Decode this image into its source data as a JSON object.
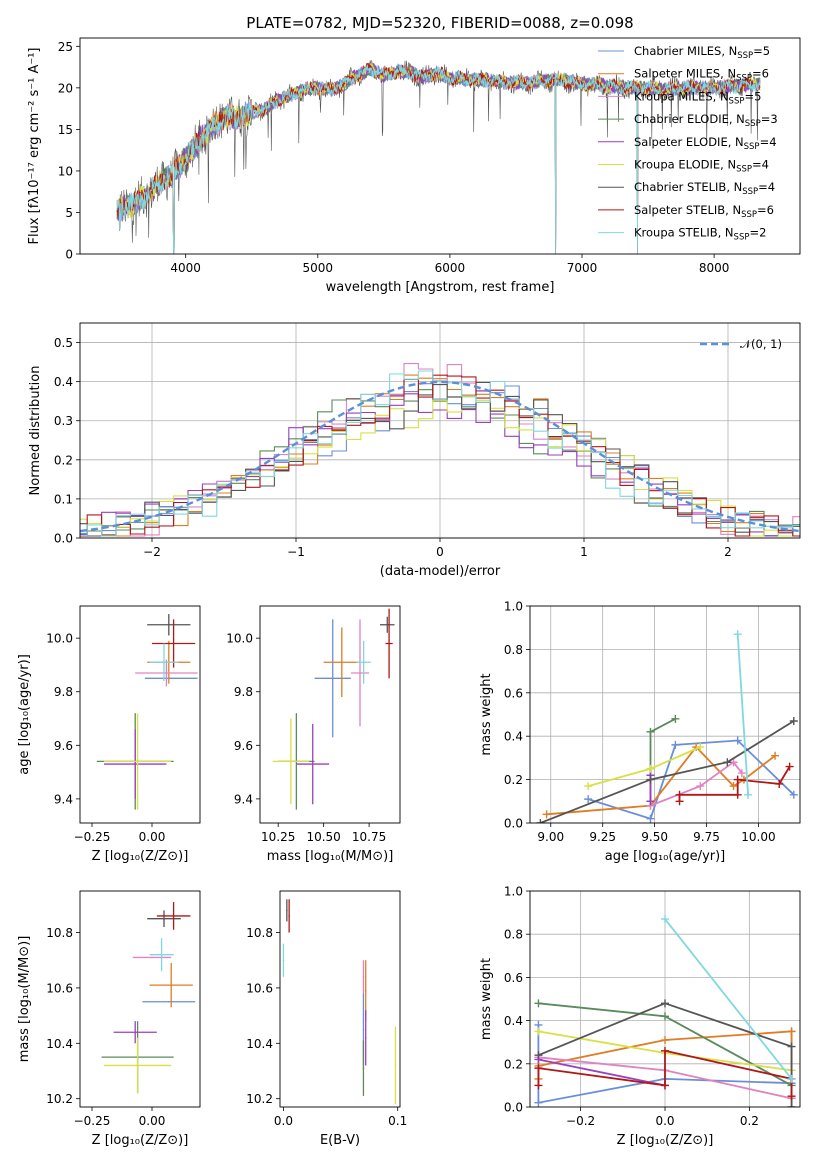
{
  "figure": {
    "title": "PLATE=0782, MJD=52320, FIBERID=0088, z=0.098"
  },
  "colors": {
    "Chabrier MILES": "#6a8fd8",
    "Salpeter MILES": "#e07c22",
    "Kroupa MILES": "#e083c0",
    "Chabrier ELODIE": "#5b8a5b",
    "Salpeter ELODIE": "#9b3fc0",
    "Kroupa ELODIE": "#d8e043",
    "Chabrier STELIB": "#555555",
    "Salpeter STELIB": "#b01818",
    "Kroupa STELIB": "#7fd8e0",
    "normal": "#5b8fd8"
  },
  "legend_spectrum": [
    {
      "label": "Chabrier MILES, N",
      "sub": "SSP",
      "suffix": "=5",
      "key": "Chabrier MILES"
    },
    {
      "label": "Salpeter MILES, N",
      "sub": "SSP",
      "suffix": "=6",
      "key": "Salpeter MILES"
    },
    {
      "label": "Kroupa MILES, N",
      "sub": "SSP",
      "suffix": "=5",
      "key": "Kroupa MILES"
    },
    {
      "label": "Chabrier ELODIE, N",
      "sub": "SSP",
      "suffix": "=3",
      "key": "Chabrier ELODIE"
    },
    {
      "label": "Salpeter ELODIE, N",
      "sub": "SSP",
      "suffix": "=4",
      "key": "Salpeter ELODIE"
    },
    {
      "label": "Kroupa ELODIE, N",
      "sub": "SSP",
      "suffix": "=4",
      "key": "Kroupa ELODIE"
    },
    {
      "label": "Chabrier STELIB, N",
      "sub": "SSP",
      "suffix": "=4",
      "key": "Chabrier STELIB"
    },
    {
      "label": "Salpeter STELIB, N",
      "sub": "SSP",
      "suffix": "=6",
      "key": "Salpeter STELIB"
    },
    {
      "label": "Kroupa STELIB, N",
      "sub": "SSP",
      "suffix": "=2",
      "key": "Kroupa STELIB"
    }
  ],
  "chart_data": [
    {
      "id": "spectrum",
      "type": "line",
      "xlabel": "wavelength [Angstrom, rest frame]",
      "ylabel": "Flux [fλ10⁻¹⁷ erg cm⁻² s⁻¹ A⁻¹]",
      "xlim": [
        3200,
        8650
      ],
      "ylim": [
        0,
        26
      ],
      "xticks": [
        4000,
        5000,
        6000,
        7000,
        8000
      ],
      "yticks": [
        0,
        5,
        10,
        15,
        20,
        25
      ],
      "grid": false,
      "legend": "right",
      "profile_x": [
        3480,
        3600,
        3700,
        3800,
        3900,
        4000,
        4100,
        4200,
        4300,
        4400,
        4500,
        4600,
        4700,
        4800,
        4900,
        5000,
        5100,
        5200,
        5300,
        5400,
        5500,
        5600,
        5700,
        5800,
        5900,
        6000,
        6200,
        6400,
        6600,
        6800,
        7000,
        7200,
        7400,
        7600,
        7800,
        8000,
        8200,
        8350
      ],
      "profile_y": [
        5.2,
        6.0,
        7.0,
        8.5,
        9.5,
        11.5,
        13.5,
        15.5,
        16.5,
        16.5,
        17.0,
        17.5,
        18.5,
        19.2,
        19.8,
        20.0,
        19.8,
        20.5,
        21.5,
        22.3,
        21.5,
        22.0,
        21.8,
        21.3,
        21.8,
        21.2,
        21.0,
        20.7,
        20.6,
        21.0,
        20.5,
        20.2,
        20.0,
        19.8,
        20.0,
        20.0,
        20.3,
        20.5
      ],
      "dips": [
        [
          6800,
          0
        ],
        [
          7420,
          0
        ],
        [
          3910,
          0
        ],
        [
          3500,
          2.8
        ]
      ]
    },
    {
      "id": "residuals",
      "type": "step-histogram",
      "xlabel": "(data-model)/error",
      "ylabel": "Normed distribution",
      "xlim": [
        -2.5,
        2.5
      ],
      "ylim": [
        0,
        0.55
      ],
      "xticks": [
        -2,
        -1,
        0,
        1,
        2
      ],
      "yticks": [
        0.0,
        0.1,
        0.2,
        0.3,
        0.4,
        0.5
      ],
      "grid": true,
      "legend": "top-right",
      "legend_label": "𝒩(0, 1)",
      "bin_width": 0.1
    },
    {
      "id": "age-vs-Z",
      "type": "errorbar",
      "xlabel": "Z [log₁₀(Z/Z⊙)]",
      "ylabel": "age  [log₁₀(age/yr)]",
      "xlim": [
        -0.3,
        0.2
      ],
      "ylim": [
        9.31,
        10.12
      ],
      "xticks": [
        -0.25,
        0.0
      ],
      "yticks": [
        9.4,
        9.6,
        9.8,
        10.0
      ],
      "points": [
        {
          "key": "Chabrier MILES",
          "x": 0.08,
          "y": 9.85,
          "xerr": 0.11,
          "yerr": 0.0
        },
        {
          "key": "Salpeter MILES",
          "x": 0.07,
          "y": 9.91,
          "xerr": 0.09,
          "yerr": 0.08
        },
        {
          "key": "Kroupa MILES",
          "x": 0.06,
          "y": 9.87,
          "xerr": 0.13,
          "yerr": 0.05
        },
        {
          "key": "Chabrier ELODIE",
          "x": -0.07,
          "y": 9.54,
          "xerr": 0.16,
          "yerr": 0.18
        },
        {
          "key": "Salpeter ELODIE",
          "x": -0.07,
          "y": 9.53,
          "xerr": 0.13,
          "yerr": 0.13
        },
        {
          "key": "Kroupa ELODIE",
          "x": -0.06,
          "y": 9.54,
          "xerr": 0.14,
          "yerr": 0.18
        },
        {
          "key": "Chabrier STELIB",
          "x": 0.07,
          "y": 10.05,
          "xerr": 0.09,
          "yerr": 0.04
        },
        {
          "key": "Salpeter STELIB",
          "x": 0.09,
          "y": 9.98,
          "xerr": 0.09,
          "yerr": 0.09
        },
        {
          "key": "Kroupa STELIB",
          "x": 0.05,
          "y": 9.91,
          "xerr": 0.06,
          "yerr": 0.07
        }
      ]
    },
    {
      "id": "age-vs-mass",
      "type": "errorbar",
      "xlabel": "mass [log₁₀(M/M⊙)]",
      "ylabel": "",
      "xlim": [
        10.15,
        10.92
      ],
      "ylim": [
        9.31,
        10.12
      ],
      "xticks": [
        10.25,
        10.5,
        10.75
      ],
      "yticks": [
        9.4,
        9.6,
        9.8,
        10.0
      ],
      "points": [
        {
          "key": "Chabrier MILES",
          "x": 10.55,
          "y": 9.85,
          "xerr": 0.1,
          "yerr": 0.22
        },
        {
          "key": "Salpeter MILES",
          "x": 10.6,
          "y": 9.91,
          "xerr": 0.1,
          "yerr": 0.13
        },
        {
          "key": "Kroupa MILES",
          "x": 10.7,
          "y": 9.87,
          "xerr": 0.05,
          "yerr": 0.2
        },
        {
          "key": "Chabrier ELODIE",
          "x": 10.35,
          "y": 9.54,
          "xerr": 0.1,
          "yerr": 0.18
        },
        {
          "key": "Salpeter ELODIE",
          "x": 10.44,
          "y": 9.53,
          "xerr": 0.09,
          "yerr": 0.15
        },
        {
          "key": "Kroupa ELODIE",
          "x": 10.32,
          "y": 9.54,
          "xerr": 0.1,
          "yerr": 0.16
        },
        {
          "key": "Chabrier STELIB",
          "x": 10.85,
          "y": 10.05,
          "xerr": 0.04,
          "yerr": 0.03
        },
        {
          "key": "Salpeter STELIB",
          "x": 10.86,
          "y": 9.98,
          "xerr": 0.02,
          "yerr": 0.13
        },
        {
          "key": "Kroupa STELIB",
          "x": 10.72,
          "y": 9.91,
          "xerr": 0.04,
          "yerr": 0.08
        }
      ]
    },
    {
      "id": "mass-weight-vs-age",
      "type": "line",
      "xlabel": "age  [log₁₀(age/yr)]",
      "ylabel": "mass weight",
      "xlim": [
        8.9,
        10.2
      ],
      "ylim": [
        0,
        1.0
      ],
      "xticks": [
        9.0,
        9.25,
        9.5,
        9.75,
        10.0
      ],
      "yticks": [
        0.0,
        0.2,
        0.4,
        0.6,
        0.8,
        1.0
      ],
      "grid": true,
      "series": [
        {
          "key": "Chabrier MILES",
          "x": [
            9.18,
            9.48,
            9.6,
            9.9,
            10.17
          ],
          "y": [
            0.11,
            0.02,
            0.36,
            0.38,
            0.13
          ]
        },
        {
          "key": "Salpeter MILES",
          "x": [
            8.98,
            9.48,
            9.7,
            9.88,
            9.93,
            10.08
          ],
          "y": [
            0.04,
            0.08,
            0.35,
            0.17,
            0.2,
            0.31
          ]
        },
        {
          "key": "Kroupa MILES",
          "x": [
            9.48,
            9.72,
            9.88,
            9.92
          ],
          "y": [
            0.08,
            0.17,
            0.28,
            0.23
          ]
        },
        {
          "key": "Chabrier ELODIE",
          "x": [
            9.48,
            9.48,
            9.6
          ],
          "y": [
            0.1,
            0.42,
            0.48
          ]
        },
        {
          "key": "Salpeter ELODIE",
          "x": [
            9.48,
            9.48
          ],
          "y": [
            0.1,
            0.22
          ]
        },
        {
          "key": "Kroupa ELODIE",
          "x": [
            9.18,
            9.48,
            9.72
          ],
          "y": [
            0.17,
            0.25,
            0.35
          ]
        },
        {
          "key": "Chabrier STELIB",
          "x": [
            8.95,
            9.48,
            9.85,
            10.17
          ],
          "y": [
            0.0,
            0.2,
            0.28,
            0.47
          ]
        },
        {
          "key": "Salpeter STELIB",
          "x": [
            9.62,
            9.62,
            9.9,
            9.9,
            10.1,
            10.15
          ],
          "y": [
            0.1,
            0.13,
            0.13,
            0.2,
            0.18,
            0.26
          ]
        },
        {
          "key": "Kroupa STELIB",
          "x": [
            9.9,
            9.95
          ],
          "y": [
            0.87,
            0.13
          ]
        }
      ]
    },
    {
      "id": "mass-vs-Z",
      "type": "errorbar",
      "xlabel": "Z [log₁₀(Z/Z⊙)]",
      "ylabel": "mass [log₁₀(M/M⊙)]",
      "xlim": [
        -0.3,
        0.2
      ],
      "ylim": [
        10.17,
        10.95
      ],
      "xticks": [
        -0.25,
        0.0
      ],
      "yticks": [
        10.2,
        10.4,
        10.6,
        10.8
      ],
      "points": [
        {
          "key": "Chabrier MILES",
          "x": 0.07,
          "y": 10.55,
          "xerr": 0.11,
          "yerr": 0.0
        },
        {
          "key": "Salpeter MILES",
          "x": 0.08,
          "y": 10.61,
          "xerr": 0.09,
          "yerr": 0.08
        },
        {
          "key": "Kroupa MILES",
          "x": 0.0,
          "y": 10.71,
          "xerr": 0.08,
          "yerr": 0.0
        },
        {
          "key": "Chabrier ELODIE",
          "x": -0.06,
          "y": 10.35,
          "xerr": 0.15,
          "yerr": 0.13
        },
        {
          "key": "Salpeter ELODIE",
          "x": -0.07,
          "y": 10.44,
          "xerr": 0.09,
          "yerr": 0.04
        },
        {
          "key": "Kroupa ELODIE",
          "x": -0.06,
          "y": 10.32,
          "xerr": 0.14,
          "yerr": 0.1
        },
        {
          "key": "Chabrier STELIB",
          "x": 0.05,
          "y": 10.85,
          "xerr": 0.07,
          "yerr": 0.03
        },
        {
          "key": "Salpeter STELIB",
          "x": 0.09,
          "y": 10.86,
          "xerr": 0.07,
          "yerr": 0.05
        },
        {
          "key": "Kroupa STELIB",
          "x": 0.04,
          "y": 10.72,
          "xerr": 0.05,
          "yerr": 0.06
        }
      ]
    },
    {
      "id": "mass-vs-EBV",
      "type": "errorbar",
      "xlabel": "E(B-V)",
      "ylabel": "",
      "xlim": [
        -0.003,
        0.102
      ],
      "ylim": [
        10.17,
        10.95
      ],
      "xticks": [
        0.0,
        0.1
      ],
      "yticks": [
        10.2,
        10.4,
        10.6,
        10.8
      ],
      "points": [
        {
          "key": "Chabrier MILES",
          "x": 0.07,
          "y": 10.45,
          "xerr": 0,
          "yerr": 0.13
        },
        {
          "key": "Salpeter MILES",
          "x": 0.072,
          "y": 10.59,
          "xerr": 0,
          "yerr": 0.11
        },
        {
          "key": "Kroupa MILES",
          "x": 0.07,
          "y": 10.64,
          "xerr": 0,
          "yerr": 0.06
        },
        {
          "key": "Chabrier ELODIE",
          "x": 0.07,
          "y": 10.31,
          "xerr": 0,
          "yerr": 0.1
        },
        {
          "key": "Salpeter ELODIE",
          "x": 0.072,
          "y": 10.42,
          "xerr": 0,
          "yerr": 0.1
        },
        {
          "key": "Kroupa ELODIE",
          "x": 0.098,
          "y": 10.32,
          "xerr": 0,
          "yerr": 0.14
        },
        {
          "key": "Chabrier STELIB",
          "x": 0.003,
          "y": 10.88,
          "xerr": 0,
          "yerr": 0.04
        },
        {
          "key": "Salpeter STELIB",
          "x": 0.005,
          "y": 10.86,
          "xerr": 0,
          "yerr": 0.06
        },
        {
          "key": "Kroupa STELIB",
          "x": 0.0,
          "y": 10.7,
          "xerr": 0,
          "yerr": 0.06
        }
      ]
    },
    {
      "id": "mass-weight-vs-Z",
      "type": "line",
      "xlabel": "Z [log₁₀(Z/Z⊙)]",
      "ylabel": "mass weight",
      "xlim": [
        -0.32,
        0.32
      ],
      "ylim": [
        0,
        1.0
      ],
      "xticks": [
        -0.2,
        0.0,
        0.2
      ],
      "yticks": [
        0.0,
        0.2,
        0.4,
        0.6,
        0.8,
        1.0
      ],
      "grid": true,
      "series": [
        {
          "key": "Chabrier MILES",
          "x": [
            -0.3,
            -0.3,
            0.0,
            0.3,
            0.3
          ],
          "y": [
            0.38,
            0.02,
            0.13,
            0.11,
            0.35
          ]
        },
        {
          "key": "Salpeter MILES",
          "x": [
            -0.3,
            -0.3,
            0.0,
            0.3,
            0.3
          ],
          "y": [
            0.13,
            0.19,
            0.31,
            0.35,
            0.04
          ]
        },
        {
          "key": "Kroupa MILES",
          "x": [
            -0.3,
            0.0,
            0.3
          ],
          "y": [
            0.23,
            0.17,
            0.04
          ]
        },
        {
          "key": "Chabrier ELODIE",
          "x": [
            -0.3,
            0.0,
            0.3
          ],
          "y": [
            0.48,
            0.42,
            0.1
          ]
        },
        {
          "key": "Salpeter ELODIE",
          "x": [
            -0.3,
            0.0
          ],
          "y": [
            0.22,
            0.1
          ]
        },
        {
          "key": "Kroupa ELODIE",
          "x": [
            -0.3,
            0.0,
            0.3
          ],
          "y": [
            0.35,
            0.25,
            0.17
          ]
        },
        {
          "key": "Chabrier STELIB",
          "x": [
            -0.3,
            0.0,
            0.3,
            0.3
          ],
          "y": [
            0.24,
            0.48,
            0.28,
            0.0
          ]
        },
        {
          "key": "Salpeter STELIB",
          "x": [
            -0.3,
            -0.3,
            0.0,
            0.0,
            0.3,
            0.3
          ],
          "y": [
            0.1,
            0.18,
            0.1,
            0.26,
            0.13,
            0.05
          ]
        },
        {
          "key": "Kroupa STELIB",
          "x": [
            0.0,
            0.3
          ],
          "y": [
            0.87,
            0.13
          ]
        }
      ]
    }
  ]
}
